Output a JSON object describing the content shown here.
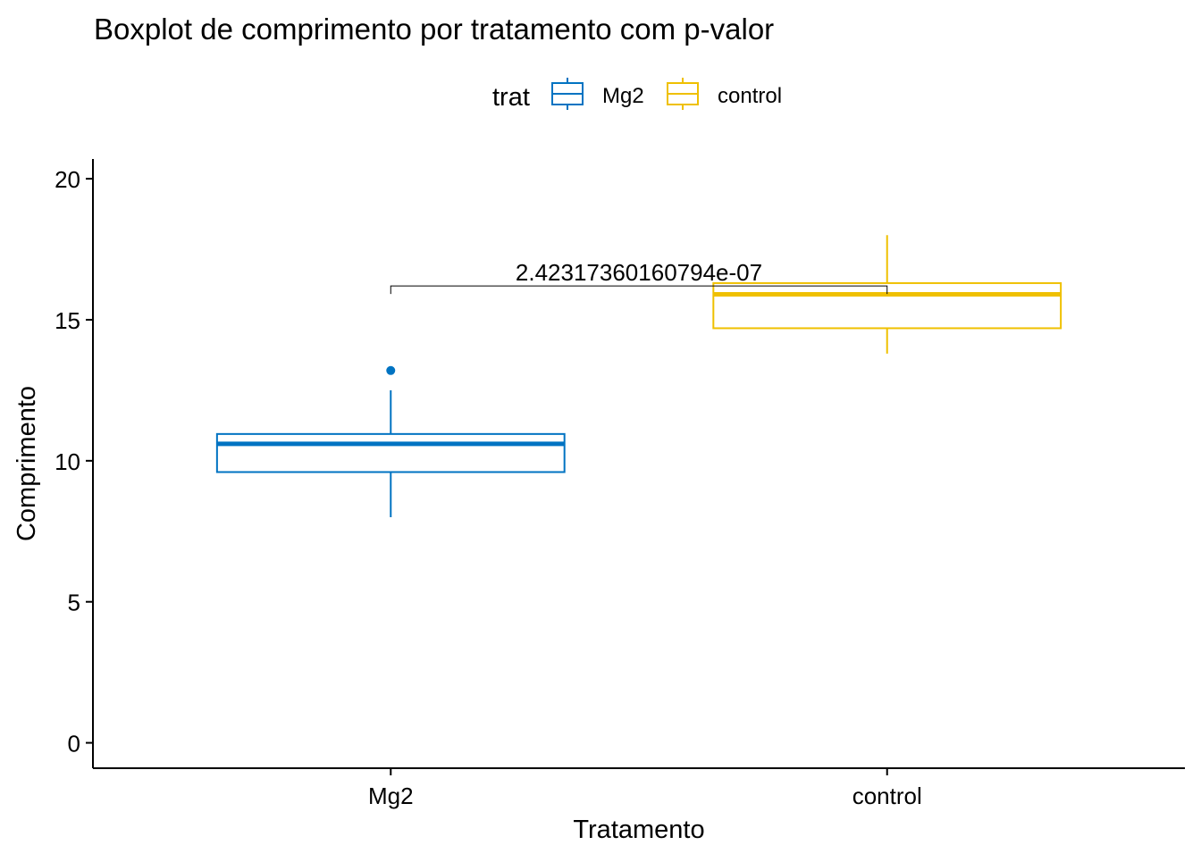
{
  "chart_data": {
    "type": "boxplot",
    "title": "Boxplot de comprimento por tratamento com p-valor",
    "xlabel": "Tratamento",
    "ylabel": "Comprimento",
    "ylim": [
      -0.9,
      20.7
    ],
    "yticks": [
      0,
      5,
      10,
      15,
      20
    ],
    "grid": false,
    "legend": {
      "title": "trat",
      "position": "top",
      "entries": [
        {
          "label": "Mg2",
          "color": "#0073C2"
        },
        {
          "label": "control",
          "color": "#EFC000"
        }
      ]
    },
    "categories": [
      "Mg2",
      "control"
    ],
    "series": [
      {
        "name": "Mg2",
        "color": "#0073C2",
        "whisker_low": 8.0,
        "q1": 9.6,
        "median": 10.6,
        "q3": 10.95,
        "whisker_high": 12.5,
        "outliers": [
          13.2
        ]
      },
      {
        "name": "control",
        "color": "#EFC000",
        "whisker_low": 13.8,
        "q1": 14.7,
        "median": 15.9,
        "q3": 16.3,
        "whisker_high": 18.0,
        "outliers": []
      }
    ],
    "annotations": [
      {
        "type": "bracket",
        "from": "Mg2",
        "to": "control",
        "y": 16.2,
        "label": "2.42317360160794e-07"
      }
    ]
  }
}
